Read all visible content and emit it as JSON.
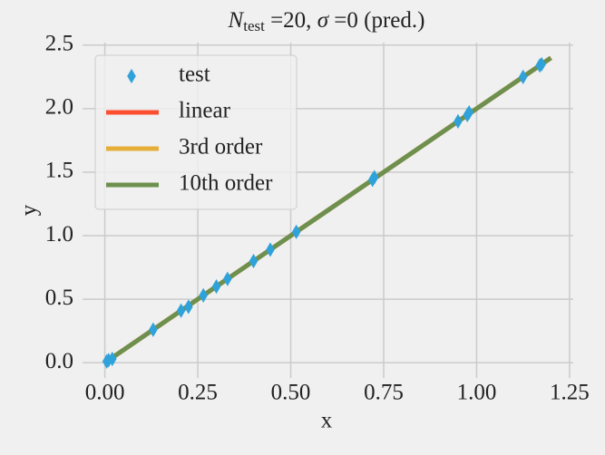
{
  "chart_data": {
    "type": "line",
    "title": [
      "N",
      "test",
      " =20, ",
      "σ",
      " =0 (pred.)"
    ],
    "xlabel": "x",
    "ylabel": "y",
    "xlim": [
      -0.06,
      1.26
    ],
    "ylim": [
      -0.12,
      2.52
    ],
    "xticks": [
      {
        "value": 0,
        "label": "0.00"
      },
      {
        "value": 0.25,
        "label": "0.25"
      },
      {
        "value": 0.5,
        "label": "0.50"
      },
      {
        "value": 0.75,
        "label": "0.75"
      },
      {
        "value": 1,
        "label": "1.00"
      },
      {
        "value": 1.25,
        "label": "1.25"
      }
    ],
    "yticks": [
      {
        "value": 0,
        "label": "0.0"
      },
      0.5,
      {
        "value": 1,
        "label": "1.0"
      },
      1.5,
      {
        "value": 2,
        "label": "2.0"
      },
      2.5
    ],
    "grid": true,
    "legend": "upper left",
    "scatter": {
      "name": "test",
      "color": "#30a2da",
      "x": [
        0.005,
        0.01,
        0.02,
        0.13,
        0.205,
        0.225,
        0.265,
        0.3,
        0.33,
        0.4,
        0.445,
        0.515,
        0.72,
        0.725,
        0.95,
        0.975,
        0.98,
        1.125,
        1.17,
        1.175
      ],
      "values": [
        0.01,
        0.02,
        0.03,
        0.26,
        0.41,
        0.44,
        0.53,
        0.6,
        0.66,
        0.8,
        0.89,
        1.03,
        1.44,
        1.46,
        1.9,
        1.95,
        1.97,
        2.25,
        2.34,
        2.35
      ]
    },
    "x": [
      0,
      0.3,
      0.6,
      0.9,
      1.2
    ],
    "series": [
      {
        "name": "linear",
        "color": "#fc4f30",
        "values": [
          0,
          0.6,
          1.2,
          1.8,
          2.4
        ]
      },
      {
        "name": "3rd order",
        "color": "#e5ae38",
        "values": [
          0,
          0.6,
          1.2,
          1.8,
          2.4
        ]
      },
      {
        "name": "10th order",
        "color": "#6d904f",
        "values": [
          0,
          0.6,
          1.2,
          1.8,
          2.4
        ]
      }
    ]
  }
}
